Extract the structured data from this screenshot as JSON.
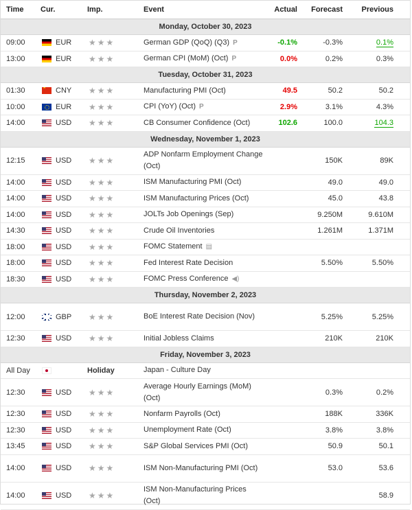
{
  "headers": {
    "time": "Time",
    "cur": "Cur.",
    "imp": "Imp.",
    "event": "Event",
    "actual": "Actual",
    "forecast": "Forecast",
    "previous": "Previous"
  },
  "days": [
    {
      "label": "Monday, October 30, 2023",
      "rows": [
        {
          "time": "09:00",
          "cur": "EUR",
          "flag": "de",
          "event": "German GDP (QoQ) (Q3)",
          "icon": "P",
          "actual": "-0.1%",
          "actual_color": "green",
          "forecast": "-0.3%",
          "previous": "0.1%",
          "prev_color": "green",
          "prev_ul": true
        },
        {
          "time": "13:00",
          "cur": "EUR",
          "flag": "de",
          "event": "German CPI (MoM) (Oct)",
          "icon": "P",
          "actual": "0.0%",
          "actual_color": "red",
          "forecast": "0.2%",
          "previous": "0.3%"
        }
      ]
    },
    {
      "label": "Tuesday, October 31, 2023",
      "rows": [
        {
          "time": "01:30",
          "cur": "CNY",
          "flag": "cn",
          "event": "Manufacturing PMI (Oct)",
          "actual": "49.5",
          "actual_color": "red",
          "forecast": "50.2",
          "previous": "50.2"
        },
        {
          "time": "10:00",
          "cur": "EUR",
          "flag": "eu",
          "event": "CPI (YoY) (Oct)",
          "icon": "P",
          "actual": "2.9%",
          "actual_color": "red",
          "forecast": "3.1%",
          "previous": "4.3%"
        },
        {
          "time": "14:00",
          "cur": "USD",
          "flag": "us",
          "event": "CB Consumer Confidence (Oct)",
          "actual": "102.6",
          "actual_color": "green",
          "forecast": "100.0",
          "previous": "104.3",
          "prev_color": "green",
          "prev_ul": true
        }
      ]
    },
    {
      "label": "Wednesday, November 1, 2023",
      "rows": [
        {
          "time": "12:15",
          "cur": "USD",
          "flag": "us",
          "event": "ADP Nonfarm Employment Change (Oct)",
          "tall": true,
          "actual": "",
          "forecast": "150K",
          "previous": "89K"
        },
        {
          "time": "14:00",
          "cur": "USD",
          "flag": "us",
          "event": "ISM Manufacturing PMI (Oct)",
          "actual": "",
          "forecast": "49.0",
          "previous": "49.0"
        },
        {
          "time": "14:00",
          "cur": "USD",
          "flag": "us",
          "event": "ISM Manufacturing Prices (Oct)",
          "actual": "",
          "forecast": "45.0",
          "previous": "43.8"
        },
        {
          "time": "14:00",
          "cur": "USD",
          "flag": "us",
          "event": "JOLTs Job Openings (Sep)",
          "actual": "",
          "forecast": "9.250M",
          "previous": "9.610M"
        },
        {
          "time": "14:30",
          "cur": "USD",
          "flag": "us",
          "event": "Crude Oil Inventories",
          "actual": "",
          "forecast": "1.261M",
          "previous": "1.371M"
        },
        {
          "time": "18:00",
          "cur": "USD",
          "flag": "us",
          "event": "FOMC Statement",
          "icon": "doc",
          "actual": "",
          "forecast": "",
          "previous": ""
        },
        {
          "time": "18:00",
          "cur": "USD",
          "flag": "us",
          "event": "Fed Interest Rate Decision",
          "actual": "",
          "forecast": "5.50%",
          "previous": "5.50%"
        },
        {
          "time": "18:30",
          "cur": "USD",
          "flag": "us",
          "event": "FOMC Press Conference",
          "icon": "sound",
          "actual": "",
          "forecast": "",
          "previous": ""
        }
      ]
    },
    {
      "label": "Thursday, November 2, 2023",
      "rows": [
        {
          "time": "12:00",
          "cur": "GBP",
          "flag": "gb",
          "event": "BoE Interest Rate Decision (Nov)",
          "tall": true,
          "actual": "",
          "forecast": "5.25%",
          "previous": "5.25%"
        },
        {
          "time": "12:30",
          "cur": "USD",
          "flag": "us",
          "event": "Initial Jobless Claims",
          "actual": "",
          "forecast": "210K",
          "previous": "210K"
        }
      ]
    },
    {
      "label": "Friday, November 3, 2023",
      "rows": [
        {
          "time": "All Day",
          "cur": "",
          "flag": "jp",
          "imp_text": "Holiday",
          "event": "Japan - Culture Day",
          "actual": "",
          "forecast": "",
          "previous": ""
        },
        {
          "time": "12:30",
          "cur": "USD",
          "flag": "us",
          "event": "Average Hourly Earnings (MoM) (Oct)",
          "tall": true,
          "actual": "",
          "forecast": "0.3%",
          "previous": "0.2%"
        },
        {
          "time": "12:30",
          "cur": "USD",
          "flag": "us",
          "event": "Nonfarm Payrolls (Oct)",
          "actual": "",
          "forecast": "188K",
          "previous": "336K"
        },
        {
          "time": "12:30",
          "cur": "USD",
          "flag": "us",
          "event": "Unemployment Rate (Oct)",
          "actual": "",
          "forecast": "3.8%",
          "previous": "3.8%"
        },
        {
          "time": "13:45",
          "cur": "USD",
          "flag": "us",
          "event": "S&P Global Services PMI (Oct)",
          "actual": "",
          "forecast": "50.9",
          "previous": "50.1"
        },
        {
          "time": "14:00",
          "cur": "USD",
          "flag": "us",
          "event": "ISM Non-Manufacturing PMI (Oct)",
          "tall": true,
          "actual": "",
          "forecast": "53.0",
          "previous": "53.6"
        },
        {
          "time": "14:00",
          "cur": "USD",
          "flag": "us",
          "event": "ISM Non-Manufacturing Prices (Oct)",
          "tall": true,
          "actual": "",
          "forecast": "",
          "previous": "58.9"
        }
      ]
    }
  ]
}
